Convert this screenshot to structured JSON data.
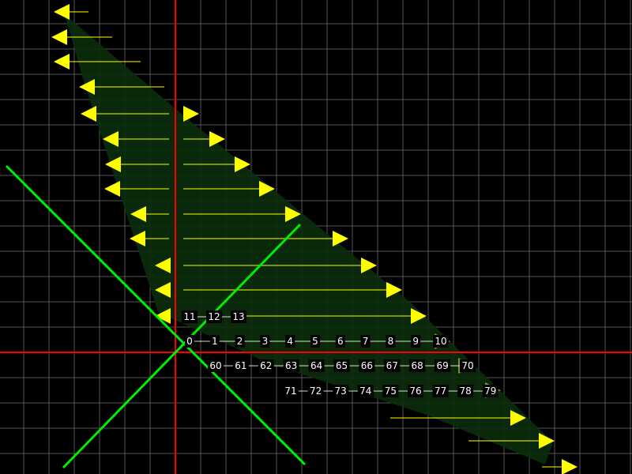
{
  "colors": {
    "background": "#000000",
    "grid": "#555555",
    "axis": "#ff0000",
    "diagonal_lines": "#00ee00",
    "arrows": "#ffff00",
    "faded_arrows": "#8a8a2a",
    "region_fill": "#0b2e0b",
    "label": "#ffffff"
  },
  "row_0_labels": [
    "0",
    "1",
    "2",
    "3",
    "4",
    "5",
    "6",
    "7",
    "8",
    "9",
    "10"
  ],
  "row_1_labels": [
    "11",
    "12",
    "13"
  ],
  "row_6_labels": [
    "60",
    "61",
    "62",
    "63",
    "64",
    "65",
    "66",
    "67",
    "68",
    "69",
    "70"
  ],
  "row_7_labels": [
    "71",
    "72",
    "73",
    "74",
    "75",
    "76",
    "77",
    "78",
    "79"
  ]
}
